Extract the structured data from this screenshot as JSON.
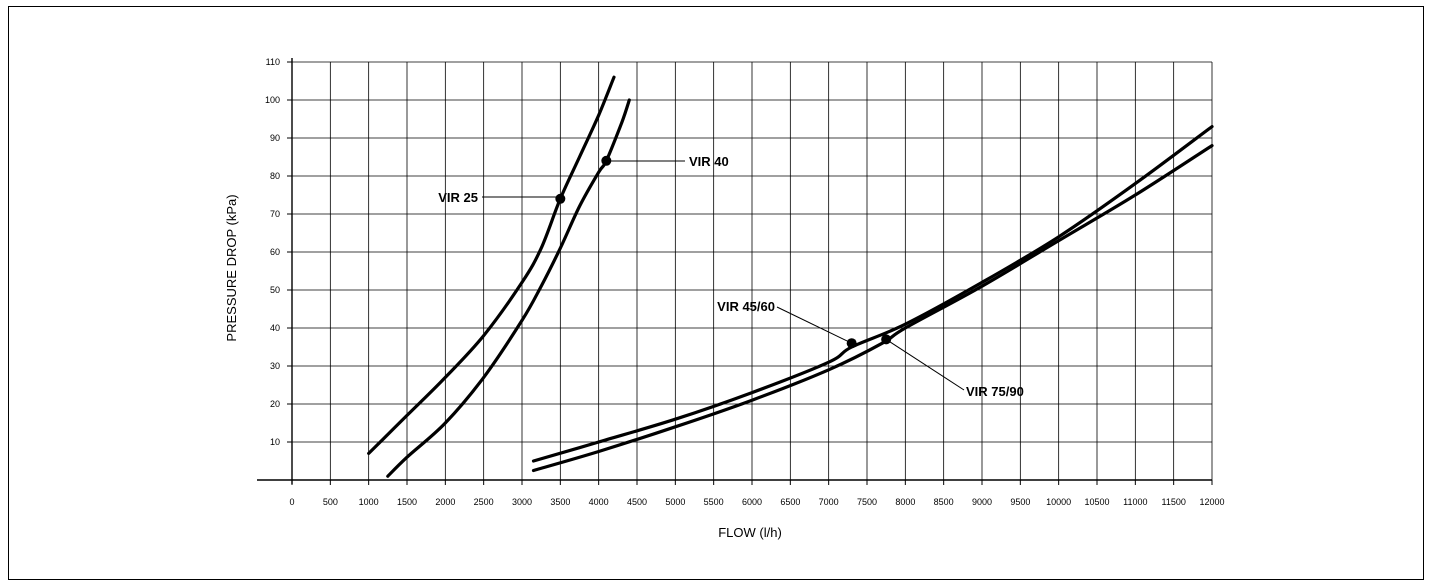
{
  "chart_data": {
    "type": "line",
    "title": "",
    "xlabel": "FLOW (l/h)",
    "ylabel": "PRESSURE DROP (kPa)",
    "xlim": [
      0,
      12000
    ],
    "ylim": [
      0,
      110
    ],
    "grid": true,
    "legend": "none",
    "x_ticks": [
      "0",
      "500",
      "1000",
      "1500",
      "2000",
      "2500",
      "3000",
      "3500",
      "4000",
      "4500",
      "5000",
      "5500",
      "6000",
      "6500",
      "7000",
      "7500",
      "8000",
      "8500",
      "9000",
      "9500",
      "10000",
      "10500",
      "11000",
      "11500",
      "12000"
    ],
    "y_ticks": [
      "10",
      "20",
      "30",
      "40",
      "50",
      "60",
      "70",
      "80",
      "90",
      "100",
      "110"
    ],
    "series": [
      {
        "name": "VIR 25",
        "points": [
          [
            1000,
            7
          ],
          [
            1500,
            17
          ],
          [
            2000,
            27
          ],
          [
            2500,
            38
          ],
          [
            3000,
            52
          ],
          [
            3250,
            61
          ],
          [
            3500,
            74
          ],
          [
            3750,
            85
          ],
          [
            4000,
            96
          ],
          [
            4200,
            106
          ]
        ],
        "marker": [
          3500,
          74
        ]
      },
      {
        "name": "VIR 40",
        "points": [
          [
            1250,
            1
          ],
          [
            1500,
            6
          ],
          [
            2000,
            15
          ],
          [
            2500,
            27
          ],
          [
            3000,
            42
          ],
          [
            3250,
            51
          ],
          [
            3500,
            61
          ],
          [
            3750,
            72
          ],
          [
            4000,
            81
          ],
          [
            4100,
            84
          ],
          [
            4300,
            94
          ],
          [
            4400,
            100
          ]
        ],
        "marker": [
          4100,
          84
        ]
      },
      {
        "name": "VIR 45/60",
        "points": [
          [
            3150,
            5
          ],
          [
            4000,
            10
          ],
          [
            5000,
            16
          ],
          [
            6000,
            23
          ],
          [
            7000,
            31
          ],
          [
            7300,
            35
          ],
          [
            8000,
            41
          ],
          [
            9000,
            52
          ],
          [
            10000,
            64
          ],
          [
            11000,
            78
          ],
          [
            12000,
            93
          ]
        ],
        "marker": [
          7300,
          36
        ]
      },
      {
        "name": "VIR 75/90",
        "points": [
          [
            3150,
            2.5
          ],
          [
            4000,
            7.5
          ],
          [
            5000,
            14
          ],
          [
            6000,
            21
          ],
          [
            7000,
            29
          ],
          [
            7700,
            36
          ],
          [
            8000,
            40
          ],
          [
            9000,
            51
          ],
          [
            10000,
            63
          ],
          [
            11000,
            75
          ],
          [
            12000,
            88
          ]
        ],
        "marker": [
          7750,
          37
        ]
      }
    ]
  }
}
